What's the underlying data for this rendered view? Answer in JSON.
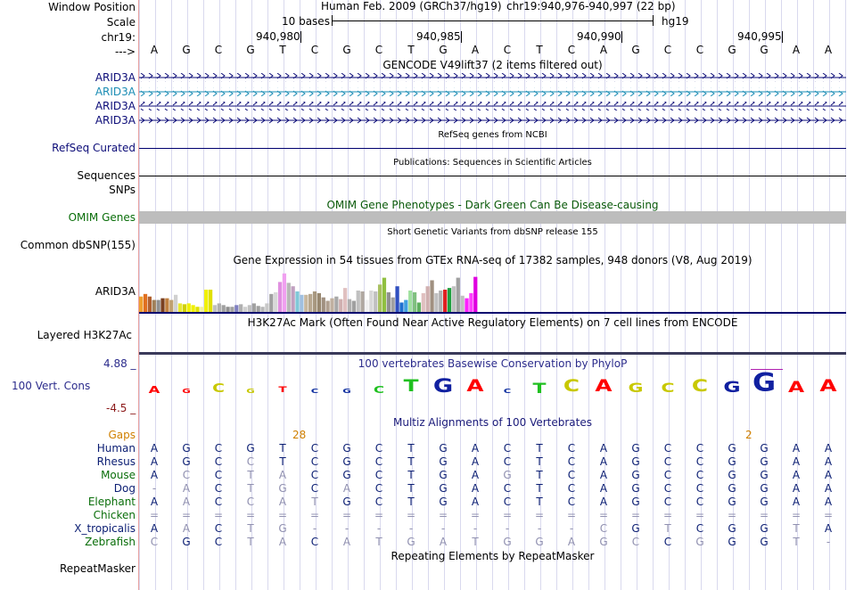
{
  "header": {
    "window_position_label": "Window Position",
    "scale_label": "Scale",
    "chr_label": "chr19:",
    "arrow_label": "--->",
    "assembly": "Human Feb. 2009 (GRCh37/hg19)",
    "position": "chr19:940,976-940,997 (22 bp)",
    "scale_text": "10 bases",
    "db": "hg19",
    "ticks": [
      "940,980",
      "940,985",
      "940,990",
      "940,995"
    ]
  },
  "sequence": [
    "A",
    "G",
    "C",
    "G",
    "T",
    "C",
    "G",
    "C",
    "T",
    "G",
    "A",
    "C",
    "T",
    "C",
    "A",
    "G",
    "C",
    "C",
    "G",
    "G",
    "A",
    "A"
  ],
  "tracks": {
    "gencode": {
      "title": "GENCODE V49lift37 (2 items filtered out)",
      "labels": [
        "ARID3A",
        "ARID3A",
        "ARID3A",
        "ARID3A"
      ]
    },
    "refseq": {
      "label": "RefSeq Curated",
      "title": "RefSeq genes from NCBI"
    },
    "publications": {
      "label": "Sequences",
      "title": "Publications: Sequences in Scientific Articles"
    },
    "snps": {
      "label": "SNPs"
    },
    "omim": {
      "label": "OMIM Genes",
      "title": "OMIM Gene Phenotypes - Dark Green Can Be Disease-causing"
    },
    "dbsnp": {
      "label": "Common dbSNP(155)",
      "title": "Short Genetic Variants from dbSNP release 155"
    },
    "gtex": {
      "label": "ARID3A",
      "title": "Gene Expression in 54 tissues from GTEx RNA-seq of 17382 samples, 948 donors (V8, Aug 2019)",
      "values": [
        0.36,
        0.42,
        0.36,
        0.28,
        0.28,
        0.32,
        0.32,
        0.28,
        0.4,
        0.2,
        0.18,
        0.2,
        0.16,
        0.12,
        0.12,
        0.52,
        0.52,
        0.16,
        0.2,
        0.16,
        0.12,
        0.12,
        0.16,
        0.18,
        0.12,
        0.16,
        0.2,
        0.14,
        0.12,
        0.2,
        0.42,
        0.46,
        0.7,
        0.9,
        0.68,
        0.6,
        0.48,
        0.4,
        0.4,
        0.42,
        0.48,
        0.44,
        0.34,
        0.26,
        0.32,
        0.36,
        0.3,
        0.56,
        0.3,
        0.26,
        0.5,
        0.48,
        0.28,
        0.5,
        0.48,
        0.64,
        0.8,
        0.46,
        0.34,
        0.6,
        0.22,
        0.28,
        0.5,
        0.46,
        0.22,
        0.44,
        0.6,
        0.74,
        0.44,
        0.5,
        0.52,
        0.56,
        0.6,
        0.8,
        0.38,
        0.32,
        0.44,
        0.82
      ],
      "colors": [
        "#f0a030",
        "#e07020",
        "#b06030",
        "#a0805a",
        "#909090",
        "#7a4020",
        "#c08040",
        "#c0a070",
        "#d0d0d0",
        "#e8e830",
        "#d0d000",
        "#f0f000",
        "#f0f000",
        "#e0e000",
        "#f0f0a0",
        "#f0f000",
        "#e0e000",
        "#c0c0c0",
        "#b0b0b0",
        "#a0a0a0",
        "#909090",
        "#a0a0a0",
        "#8080c0",
        "#b0b0b0",
        "#d0d0d0",
        "#c0c0c0",
        "#a0a0a0",
        "#a0a0a0",
        "#b8b8b8",
        "#c8c8c8",
        "#a0a0a0",
        "#d8d8d8",
        "#e090e0",
        "#f0a0f0",
        "#b8b8b8",
        "#c0a0c0",
        "#80c8d8",
        "#a0c0e0",
        "#c8b8a0",
        "#b8a890",
        "#a89880",
        "#988870",
        "#a09080",
        "#b0a090",
        "#c0b0a0",
        "#a8a8a8",
        "#d0b0b0",
        "#e0c0c0",
        "#b0b0b0",
        "#a0a0a0",
        "#c0c0c0",
        "#b0a8a0",
        "#f0f0f0",
        "#d8d8d8",
        "#c0c0c0",
        "#a8c060",
        "#90c040",
        "#909090",
        "#a0a0a0",
        "#3050c0",
        "#2070d0",
        "#40a0e0",
        "#a0e0a0",
        "#80c080",
        "#60b060",
        "#e0c0c0",
        "#d0b0b0",
        "#a09080",
        "#c0c0c0",
        "#b0b0b0",
        "#e02020",
        "#20a040",
        "#c0c0c0",
        "#a0a0a0",
        "#c0c0c0",
        "#ff20ff",
        "#ff40ff",
        "#e000e0"
      ]
    },
    "h3k27ac": {
      "label": "Layered H3K27Ac",
      "title": "H3K27Ac Mark (Often Found Near Active Regulatory Elements) on 7 cell lines from ENCODE"
    },
    "phylop": {
      "label": "100 Vert. Cons",
      "title": "100 vertebrates Basewise Conservation by PhyloP",
      "ymax": "4.88 _",
      "ymin": "-4.5 _"
    },
    "multiz": {
      "title": "Multiz Alignments of 100 Vertebrates",
      "gaps_label": "Gaps",
      "gap_numbers": [
        "28",
        "2"
      ],
      "species": [
        {
          "name": "Human",
          "row": "AGCGTCGCTGACTCAGCCGGAA",
          "color": "#0b1e73"
        },
        {
          "name": "Rhesus",
          "row": "AGCCTCGCTGACTCAGCCGGAA",
          "color": "#0b1e73"
        },
        {
          "name": "Mouse",
          "row": "ACCTACGCTGAGTCAGCCGGAA",
          "color": "#0a6e0a"
        },
        {
          "name": "Dog",
          "row": "-ACTGCACTGACTCAGCCGGAA",
          "color": "#0b1e73"
        },
        {
          "name": "Elephant",
          "row": "AACCATGCTGACTCAGCCGGAA",
          "color": "#0a6e0a"
        },
        {
          "name": "Chicken",
          "row": "======================",
          "color": "#0a6e0a"
        },
        {
          "name": "X_tropicalis",
          "row": "AACTG---------CGTCGGTA",
          "color": "#0b1e73"
        },
        {
          "name": "Zebrafish",
          "row": "CGCTACATGATGGAGCCGGGT-",
          "color": "#0a6e0a"
        }
      ]
    },
    "repeatmasker": {
      "label": "RepeatMasker",
      "title": "Repeating Elements by RepeatMasker"
    }
  },
  "conservation_glyphs": [
    {
      "base": "A",
      "size": 0.18,
      "color": "#ff0000"
    },
    {
      "base": "G",
      "size": 0.05,
      "color": "#ff0000"
    },
    {
      "base": "C",
      "size": 0.25,
      "color": "#c8c800"
    },
    {
      "base": "G",
      "size": 0.05,
      "color": "#c8c800"
    },
    {
      "base": "T",
      "size": 0.1,
      "color": "#ff0000"
    },
    {
      "base": "C",
      "size": 0.05,
      "color": "#1030a0"
    },
    {
      "base": "G",
      "size": 0.05,
      "color": "#1030a0"
    },
    {
      "base": "C",
      "size": 0.18,
      "color": "#20c020"
    },
    {
      "base": "T",
      "size": 0.45,
      "color": "#20c020"
    },
    {
      "base": "G",
      "size": 0.55,
      "color": "#1020a0"
    },
    {
      "base": "A",
      "size": 0.45,
      "color": "#ff0000"
    },
    {
      "base": "C",
      "size": 0.05,
      "color": "#1030a0"
    },
    {
      "base": "T",
      "size": 0.35,
      "color": "#20c020"
    },
    {
      "base": "C",
      "size": 0.45,
      "color": "#c8c800"
    },
    {
      "base": "A",
      "size": 0.45,
      "color": "#ff0000"
    },
    {
      "base": "G",
      "size": 0.3,
      "color": "#c8c800"
    },
    {
      "base": "C",
      "size": 0.3,
      "color": "#c8c800"
    },
    {
      "base": "C",
      "size": 0.45,
      "color": "#c8c800"
    },
    {
      "base": "G",
      "size": 0.4,
      "color": "#1020a0"
    },
    {
      "base": "G",
      "size": 0.8,
      "color": "#1020a0"
    },
    {
      "base": "A",
      "size": 0.4,
      "color": "#ff0000"
    },
    {
      "base": "A",
      "size": 0.45,
      "color": "#ff0000"
    }
  ]
}
